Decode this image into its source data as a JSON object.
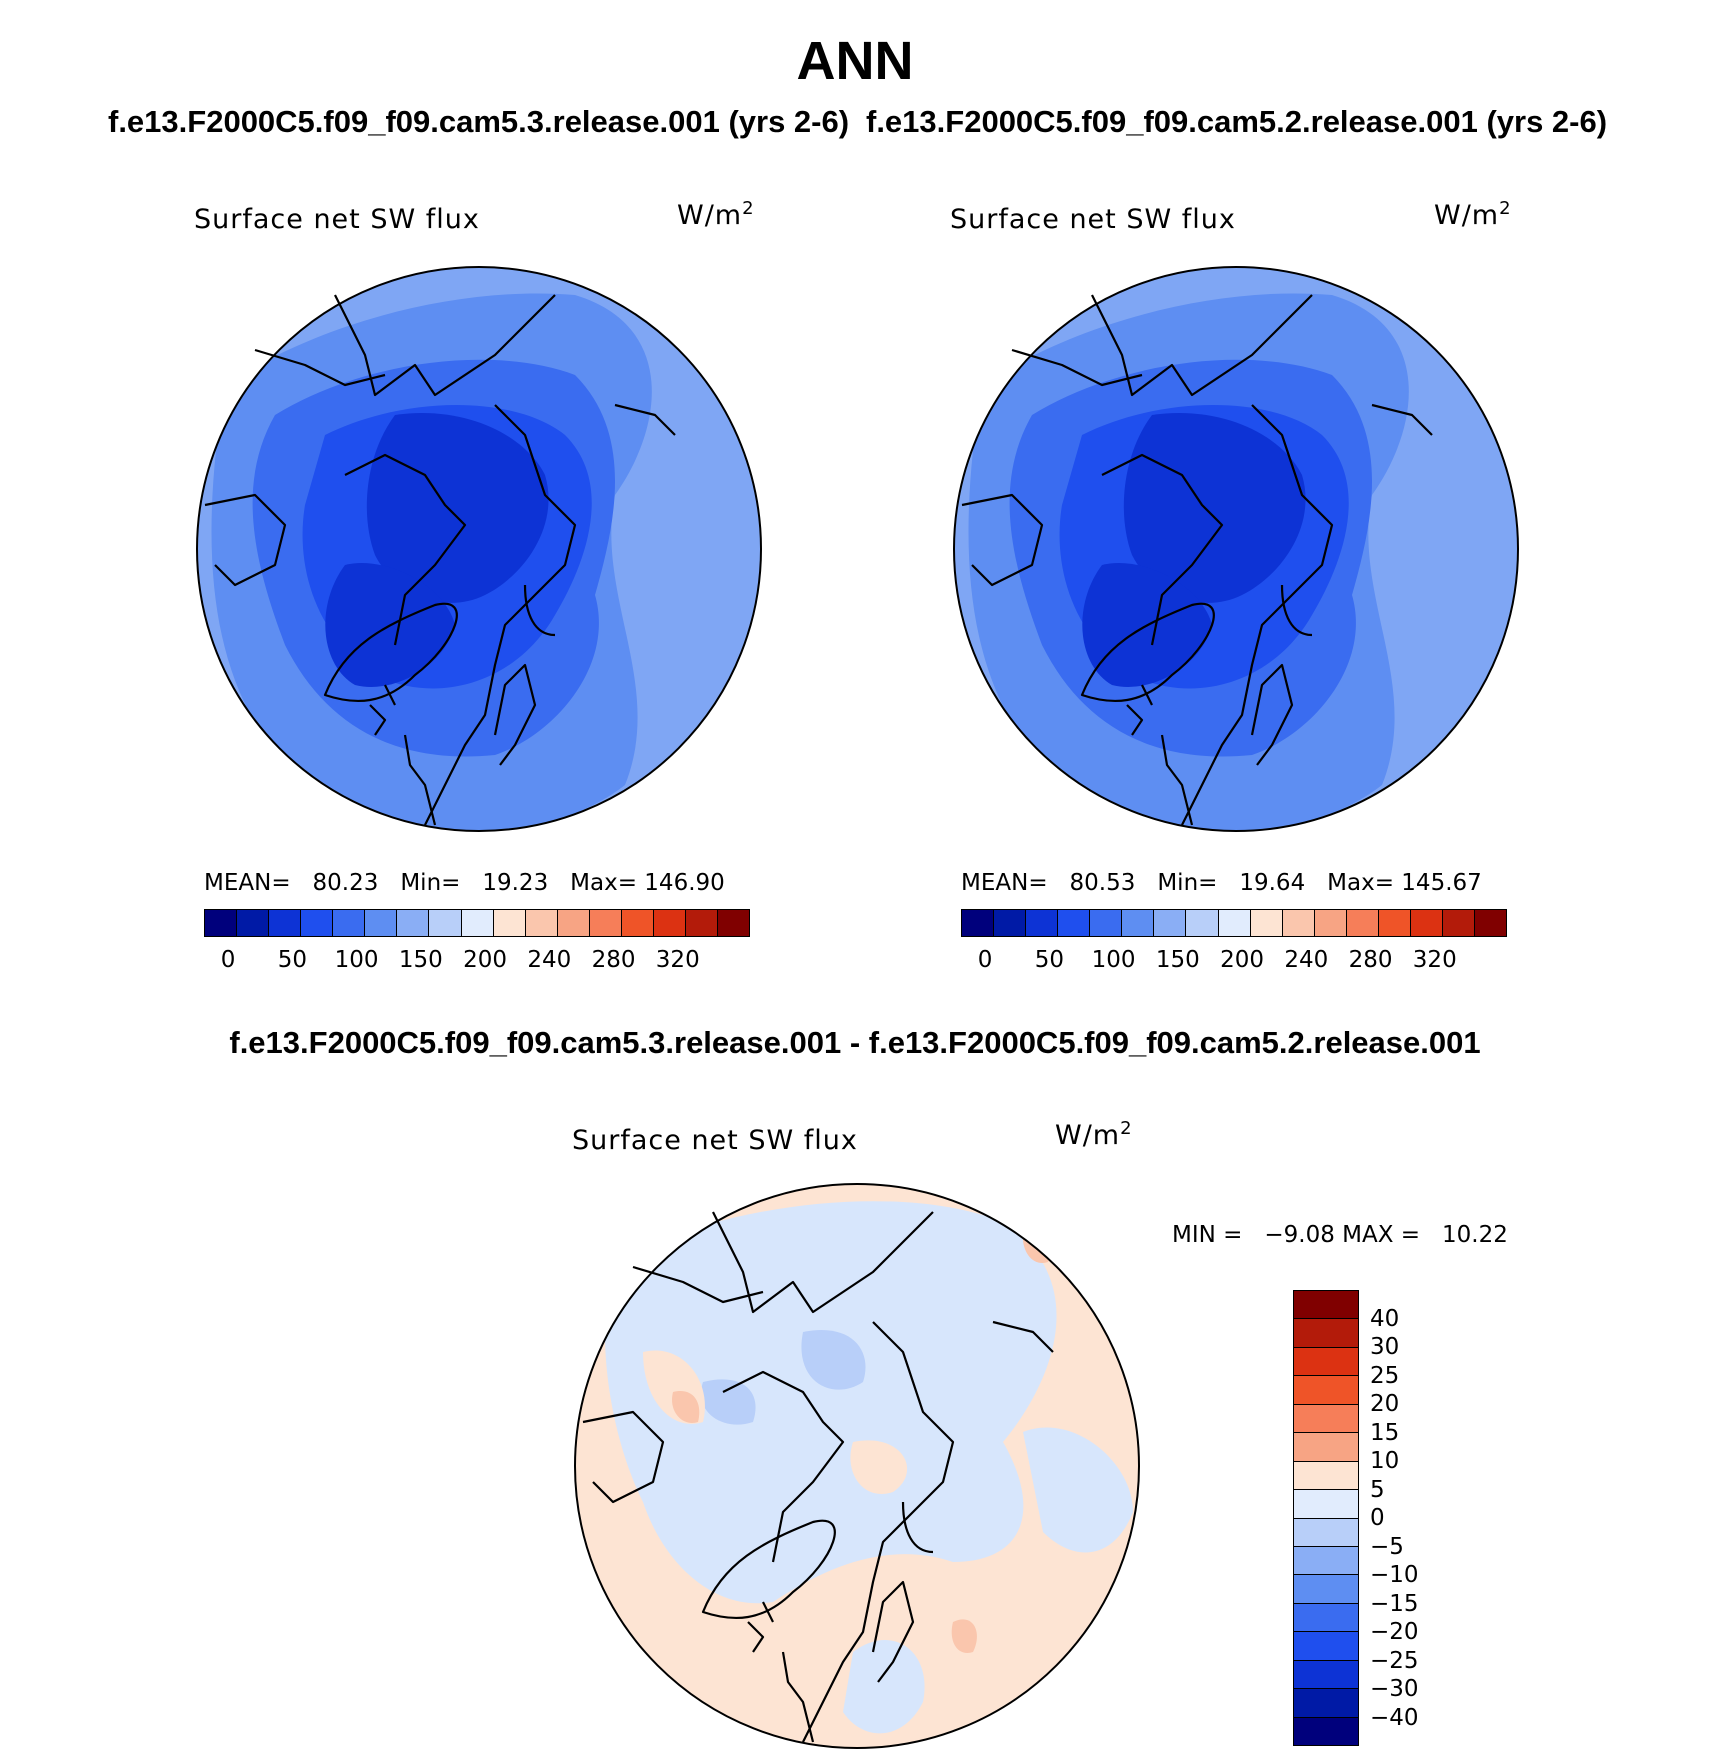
{
  "figure": {
    "title": "ANN",
    "case_left": "f.e13.F2000C5.f09_f09.cam5.3.release.001 (yrs 2-6)",
    "case_right": "f.e13.F2000C5.f09_f09.cam5.2.release.001 (yrs 2-6)",
    "diff_title": "f.e13.F2000C5.f09_f09.cam5.3.release.001 - f.e13.F2000C5.f09_f09.cam5.2.release.001"
  },
  "panels": [
    {
      "variable": "Surface net SW flux",
      "units": "W/m",
      "units_exp": "2",
      "mean_label": "MEAN=",
      "mean": "80.23",
      "min_label": "Min=",
      "min": "19.23",
      "max_label": "Max=",
      "max": "146.90"
    },
    {
      "variable": "Surface net SW flux",
      "units": "W/m",
      "units_exp": "2",
      "mean_label": "MEAN=",
      "mean": "80.53",
      "min_label": "Min=",
      "min": "19.64",
      "max_label": "Max=",
      "max": "145.67"
    }
  ],
  "diff_panel": {
    "variable": "Surface net SW flux",
    "units": "W/m",
    "units_exp": "2",
    "min_label": "MIN =",
    "min": "−9.08",
    "max_label": "MAX =",
    "max": "10.22"
  },
  "colorbar_abs": {
    "colors": [
      "#00007c",
      "#001aa6",
      "#0d33d5",
      "#1f4fee",
      "#3a6cf0",
      "#5e8ef2",
      "#8aaef5",
      "#b8cff9",
      "#e1ecfd",
      "#fde4d3",
      "#fac6ad",
      "#f7a484",
      "#f67e59",
      "#ef5428",
      "#dc3212",
      "#b31b0a",
      "#800000"
    ],
    "tick_labels": [
      "0",
      "50",
      "100",
      "150",
      "200",
      "240",
      "280",
      "320"
    ]
  },
  "colorbar_diff": {
    "colors": [
      "#800000",
      "#b31b0a",
      "#dc3212",
      "#ef5428",
      "#f67e59",
      "#f7a484",
      "#fde4d3",
      "#e1ecfd",
      "#b8cff9",
      "#8aaef5",
      "#5e8ef2",
      "#3a6cf0",
      "#1f4fee",
      "#0d33d5",
      "#001aa6",
      "#00007c"
    ],
    "tick_labels": [
      "40",
      "30",
      "25",
      "20",
      "15",
      "10",
      "5",
      "0",
      "−5",
      "−10",
      "−15",
      "−20",
      "−25",
      "−30",
      "−40"
    ]
  },
  "map_colors": {
    "abs_outer": "#7fa6f4",
    "abs_mid1": "#5e8ef2",
    "abs_mid2": "#3a6cf0",
    "abs_inner": "#1f4fee",
    "abs_core": "#0d33d5",
    "diff_pos": "#fde4d3",
    "diff_neg": "#d7e6fc",
    "diff_neg2": "#b8cff9",
    "diff_pos2": "#fac6ad"
  }
}
